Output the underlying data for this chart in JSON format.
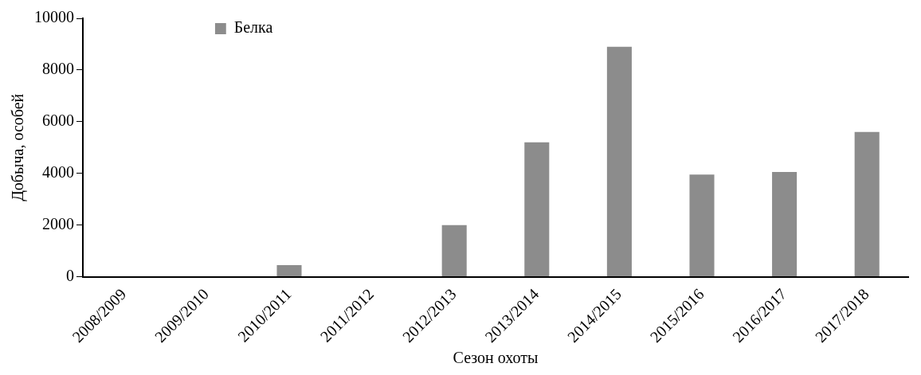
{
  "chart_data": {
    "type": "bar",
    "xlabel": "Сезон охоты",
    "ylabel": "Добыча, особей",
    "categories": [
      "2008/2009",
      "2009/2010",
      "2010/2011",
      "2011/2012",
      "2012/2013",
      "2013/2014",
      "2014/2015",
      "2015/2016",
      "2016/2017",
      "2017/2018"
    ],
    "series": [
      {
        "name": "Белка",
        "color": "#8c8c8c",
        "values": [
          0,
          0,
          450,
          0,
          2000,
          5200,
          8900,
          3950,
          4050,
          5600
        ]
      }
    ],
    "ylim": [
      0,
      10000
    ],
    "yticks": [
      0,
      2000,
      4000,
      6000,
      8000,
      10000
    ],
    "grid": false,
    "legend": "top left"
  }
}
